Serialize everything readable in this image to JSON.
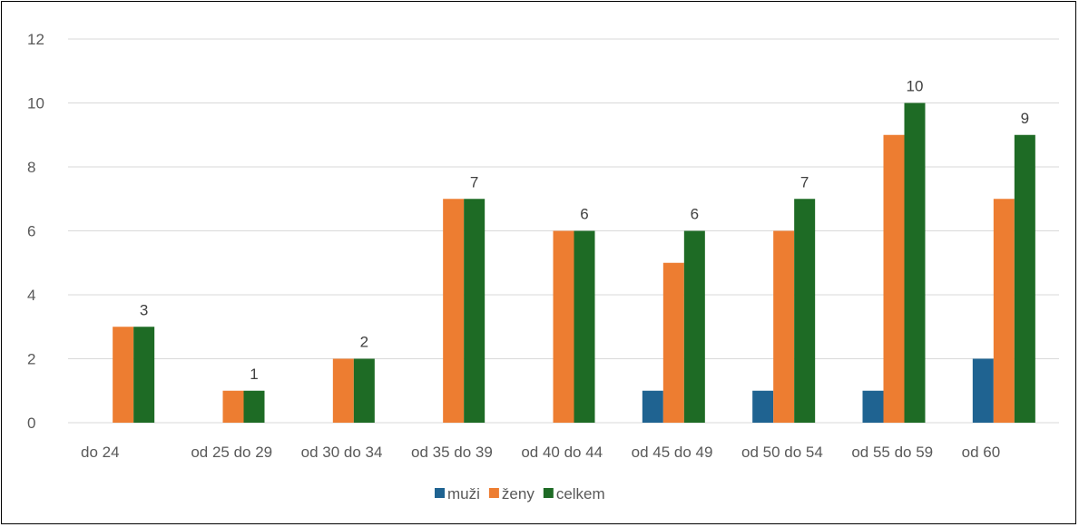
{
  "chart_data": {
    "type": "bar",
    "title": "",
    "xlabel": "",
    "ylabel": "",
    "categories": [
      "do 24",
      "od 25 do 29",
      "od 30 do 34",
      "od 35 do 39",
      "od 40 do 44",
      "od 45 do 49",
      "od 50 do 54",
      "od 55 do 59",
      "od 60"
    ],
    "series": [
      {
        "name": "muži",
        "color": "#1f6391",
        "values": [
          0,
          0,
          0,
          0,
          0,
          1,
          1,
          1,
          2
        ]
      },
      {
        "name": "ženy",
        "color": "#ed7d31",
        "values": [
          3,
          1,
          2,
          7,
          6,
          5,
          6,
          9,
          7
        ]
      },
      {
        "name": "celkem",
        "color": "#1e6b25",
        "values": [
          3,
          1,
          2,
          7,
          6,
          6,
          7,
          10,
          9
        ]
      }
    ],
    "data_labels_series": "celkem",
    "ylim": [
      0,
      12
    ],
    "yticks": [
      0,
      2,
      4,
      6,
      8,
      10,
      12
    ],
    "grid": true,
    "legend_position": "bottom"
  }
}
